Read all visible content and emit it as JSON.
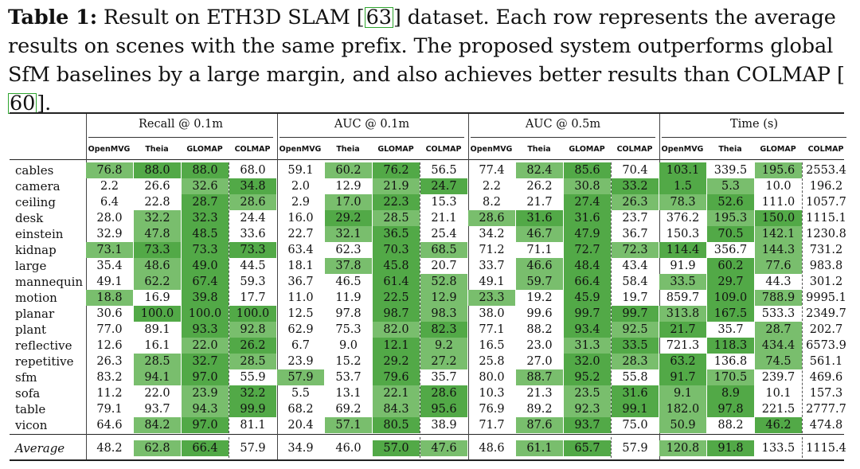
{
  "caption": {
    "label": "Table 1:",
    "text_a": " Result on ETH3D SLAM [",
    "cite_a": "63",
    "text_b": "] dataset. Each row represents the average results on scenes with the same prefix. The proposed system outperforms global SfM baselines by a large margin, and also achieves better results than COLMAP [",
    "cite_b": "60",
    "text_c": "]."
  },
  "groups": [
    "Recall @ 0.1m",
    "AUC @ 0.1m",
    "AUC @ 0.5m",
    "Time (s)"
  ],
  "methods": [
    "OpenMVG",
    "Theia",
    "GLOMAP",
    "COLMAP"
  ],
  "colors": {
    "dark": "#52a947",
    "mid": "#79be6d",
    "light": "#b3d8a6"
  },
  "rows": [
    {
      "name": "cables",
      "v": [
        "76.8",
        "88.0",
        "88.0",
        "68.0",
        "59.1",
        "60.2",
        "76.2",
        "56.5",
        "77.4",
        "82.4",
        "85.6",
        "70.4",
        "103.1",
        "339.5",
        "195.6",
        "2553.4"
      ],
      "s": [
        2,
        1,
        1,
        0,
        0,
        2,
        1,
        0,
        0,
        2,
        1,
        0,
        1,
        0,
        2,
        0
      ]
    },
    {
      "name": "camera",
      "v": [
        "2.2",
        "26.6",
        "32.6",
        "34.8",
        "2.0",
        "12.9",
        "21.9",
        "24.7",
        "2.2",
        "26.2",
        "30.8",
        "33.2",
        "1.5",
        "5.3",
        "10.0",
        "196.2"
      ],
      "s": [
        0,
        0,
        2,
        1,
        0,
        0,
        2,
        1,
        0,
        0,
        2,
        1,
        1,
        2,
        0,
        0
      ]
    },
    {
      "name": "ceiling",
      "v": [
        "6.4",
        "22.8",
        "28.7",
        "28.6",
        "2.9",
        "17.0",
        "22.3",
        "15.3",
        "8.2",
        "21.7",
        "27.4",
        "26.3",
        "78.3",
        "52.6",
        "111.0",
        "1057.7"
      ],
      "s": [
        0,
        0,
        1,
        2,
        0,
        2,
        1,
        0,
        0,
        0,
        1,
        2,
        2,
        1,
        0,
        0
      ]
    },
    {
      "name": "desk",
      "v": [
        "28.0",
        "32.2",
        "32.3",
        "24.4",
        "16.0",
        "29.2",
        "28.5",
        "21.1",
        "28.6",
        "31.6",
        "31.6",
        "23.7",
        "376.2",
        "195.3",
        "150.0",
        "1115.1"
      ],
      "s": [
        0,
        2,
        1,
        0,
        0,
        1,
        2,
        0,
        2,
        1,
        1,
        0,
        0,
        2,
        1,
        0
      ]
    },
    {
      "name": "einstein",
      "v": [
        "32.9",
        "47.8",
        "48.5",
        "33.6",
        "22.7",
        "32.1",
        "36.5",
        "25.4",
        "34.2",
        "46.7",
        "47.9",
        "36.7",
        "150.3",
        "70.5",
        "142.1",
        "1230.8"
      ],
      "s": [
        0,
        2,
        1,
        0,
        0,
        2,
        1,
        0,
        0,
        2,
        1,
        0,
        0,
        1,
        2,
        0
      ]
    },
    {
      "name": "kidnap",
      "v": [
        "73.1",
        "73.3",
        "73.3",
        "73.3",
        "63.4",
        "62.3",
        "70.3",
        "68.5",
        "71.2",
        "71.1",
        "72.7",
        "72.3",
        "114.4",
        "356.7",
        "144.3",
        "731.2"
      ],
      "s": [
        2,
        1,
        1,
        1,
        0,
        0,
        1,
        2,
        0,
        0,
        1,
        2,
        1,
        0,
        2,
        0
      ]
    },
    {
      "name": "large",
      "v": [
        "35.4",
        "48.6",
        "49.0",
        "44.5",
        "18.1",
        "37.8",
        "45.8",
        "20.7",
        "33.7",
        "46.6",
        "48.4",
        "43.4",
        "91.9",
        "60.2",
        "77.6",
        "983.8"
      ],
      "s": [
        0,
        2,
        1,
        0,
        0,
        2,
        1,
        0,
        0,
        2,
        1,
        0,
        0,
        1,
        2,
        0
      ]
    },
    {
      "name": "mannequin",
      "v": [
        "49.1",
        "62.2",
        "67.4",
        "59.3",
        "36.7",
        "46.5",
        "61.4",
        "52.8",
        "49.1",
        "59.7",
        "66.4",
        "58.4",
        "33.5",
        "29.7",
        "44.3",
        "301.2"
      ],
      "s": [
        0,
        2,
        1,
        0,
        0,
        0,
        1,
        2,
        0,
        2,
        1,
        0,
        2,
        1,
        0,
        0
      ]
    },
    {
      "name": "motion",
      "v": [
        "18.8",
        "16.9",
        "39.8",
        "17.7",
        "11.0",
        "11.9",
        "22.5",
        "12.9",
        "23.3",
        "19.2",
        "45.9",
        "19.7",
        "859.7",
        "109.0",
        "788.9",
        "9995.1"
      ],
      "s": [
        2,
        0,
        1,
        0,
        0,
        0,
        1,
        2,
        2,
        0,
        1,
        0,
        0,
        1,
        2,
        0
      ]
    },
    {
      "name": "planar",
      "v": [
        "30.6",
        "100.0",
        "100.0",
        "100.0",
        "12.5",
        "97.8",
        "98.7",
        "98.3",
        "38.0",
        "99.6",
        "99.7",
        "99.7",
        "313.8",
        "167.5",
        "533.3",
        "2349.7"
      ],
      "s": [
        0,
        1,
        1,
        1,
        0,
        0,
        1,
        2,
        0,
        0,
        1,
        1,
        2,
        1,
        0,
        0
      ]
    },
    {
      "name": "plant",
      "v": [
        "77.0",
        "89.1",
        "93.3",
        "92.8",
        "62.9",
        "75.3",
        "82.0",
        "82.3",
        "77.1",
        "88.2",
        "93.4",
        "92.5",
        "21.7",
        "35.7",
        "28.7",
        "202.7"
      ],
      "s": [
        0,
        0,
        1,
        2,
        0,
        0,
        2,
        1,
        0,
        0,
        1,
        2,
        1,
        0,
        2,
        0
      ]
    },
    {
      "name": "reflective",
      "v": [
        "12.6",
        "16.1",
        "22.0",
        "26.2",
        "6.7",
        "9.0",
        "12.1",
        "9.2",
        "16.5",
        "23.0",
        "31.3",
        "33.5",
        "721.3",
        "118.3",
        "434.4",
        "6573.9"
      ],
      "s": [
        0,
        0,
        2,
        1,
        0,
        0,
        1,
        2,
        0,
        0,
        2,
        1,
        0,
        1,
        2,
        0
      ]
    },
    {
      "name": "repetitive",
      "v": [
        "26.3",
        "28.5",
        "32.7",
        "28.5",
        "23.9",
        "15.2",
        "29.2",
        "27.2",
        "25.8",
        "27.0",
        "32.0",
        "28.3",
        "63.2",
        "136.8",
        "74.5",
        "561.1"
      ],
      "s": [
        0,
        2,
        1,
        2,
        0,
        0,
        1,
        2,
        0,
        0,
        1,
        2,
        1,
        0,
        2,
        0
      ]
    },
    {
      "name": "sfm",
      "v": [
        "83.2",
        "94.1",
        "97.0",
        "55.9",
        "57.9",
        "53.7",
        "79.6",
        "35.7",
        "80.0",
        "88.7",
        "95.2",
        "55.8",
        "91.7",
        "170.5",
        "239.7",
        "469.6"
      ],
      "s": [
        0,
        2,
        1,
        0,
        2,
        0,
        1,
        0,
        0,
        2,
        1,
        0,
        1,
        2,
        0,
        0
      ]
    },
    {
      "name": "sofa",
      "v": [
        "11.2",
        "22.0",
        "23.9",
        "32.2",
        "5.5",
        "13.1",
        "22.1",
        "28.6",
        "10.3",
        "21.3",
        "23.5",
        "31.6",
        "9.1",
        "8.9",
        "10.1",
        "157.3"
      ],
      "s": [
        0,
        0,
        2,
        1,
        0,
        0,
        2,
        1,
        0,
        0,
        2,
        1,
        2,
        1,
        0,
        0
      ]
    },
    {
      "name": "table",
      "v": [
        "79.1",
        "93.7",
        "94.3",
        "99.9",
        "68.2",
        "69.2",
        "84.3",
        "95.6",
        "76.9",
        "89.2",
        "92.3",
        "99.1",
        "182.0",
        "97.8",
        "221.5",
        "2777.7"
      ],
      "s": [
        0,
        0,
        2,
        1,
        0,
        0,
        2,
        1,
        0,
        0,
        2,
        1,
        2,
        1,
        0,
        0
      ]
    },
    {
      "name": "vicon",
      "v": [
        "64.6",
        "84.2",
        "97.0",
        "81.1",
        "20.4",
        "57.1",
        "80.5",
        "38.9",
        "71.7",
        "87.6",
        "93.7",
        "75.0",
        "50.9",
        "88.2",
        "46.2",
        "474.8"
      ],
      "s": [
        0,
        2,
        1,
        0,
        0,
        2,
        1,
        0,
        0,
        2,
        1,
        0,
        2,
        0,
        1,
        0
      ]
    }
  ],
  "average": {
    "name": "Average",
    "v": [
      "48.2",
      "62.8",
      "66.4",
      "57.9",
      "34.9",
      "46.0",
      "57.0",
      "47.6",
      "48.6",
      "61.1",
      "65.7",
      "57.9",
      "120.8",
      "91.8",
      "133.5",
      "1115.4"
    ],
    "s": [
      0,
      2,
      1,
      0,
      0,
      0,
      1,
      2,
      0,
      2,
      1,
      0,
      2,
      1,
      0,
      0
    ]
  }
}
